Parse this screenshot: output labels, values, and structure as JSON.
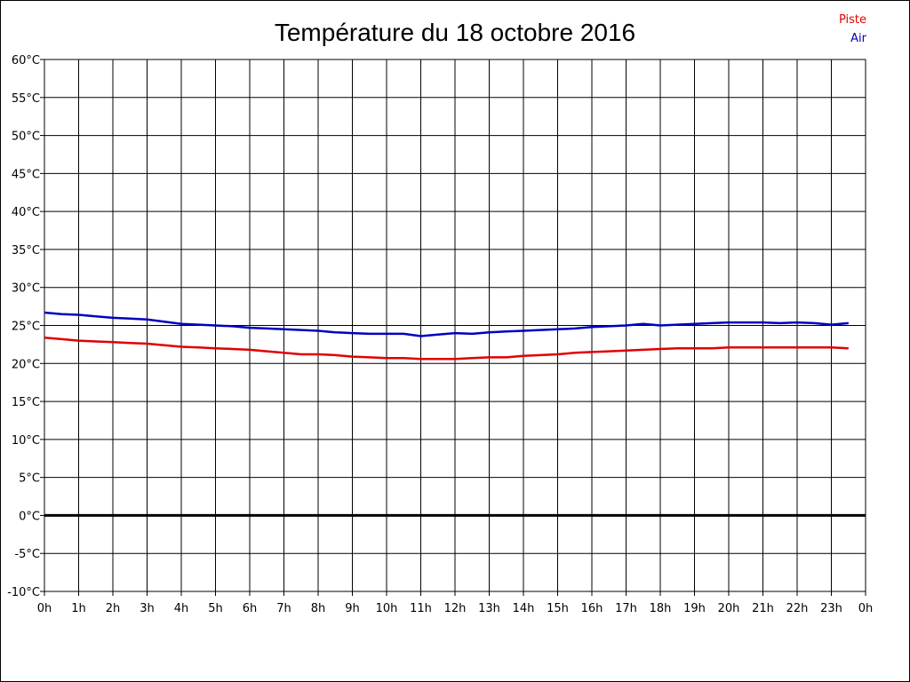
{
  "chart_data": {
    "type": "line",
    "title": "Température du 18 octobre 2016",
    "xlabel": "",
    "ylabel": "",
    "x_ticks": [
      "0h",
      "1h",
      "2h",
      "3h",
      "4h",
      "5h",
      "6h",
      "7h",
      "8h",
      "9h",
      "10h",
      "11h",
      "12h",
      "13h",
      "14h",
      "15h",
      "16h",
      "17h",
      "18h",
      "19h",
      "20h",
      "21h",
      "22h",
      "23h",
      "0h"
    ],
    "y_ticks": [
      "60°C",
      "55°C",
      "50°C",
      "45°C",
      "40°C",
      "35°C",
      "30°C",
      "25°C",
      "20°C",
      "15°C",
      "10°C",
      "5°C",
      "0°C",
      "-5°C",
      "-10°C"
    ],
    "xlim": [
      0,
      24
    ],
    "ylim": [
      -10,
      60
    ],
    "grid": true,
    "legend_position": "top-right",
    "series": [
      {
        "name": "Piste",
        "color": "#e00000",
        "x": [
          0,
          0.5,
          1,
          1.5,
          2,
          2.5,
          3,
          3.5,
          4,
          4.5,
          5,
          5.5,
          6,
          6.5,
          7,
          7.5,
          8,
          8.5,
          9,
          9.5,
          10,
          10.5,
          11,
          11.5,
          12,
          12.5,
          13,
          13.5,
          14,
          14.5,
          15,
          15.5,
          16,
          16.5,
          17,
          17.5,
          18,
          18.5,
          19,
          19.5,
          20,
          20.5,
          21,
          21.5,
          22,
          22.5,
          23,
          23.5
        ],
        "values": [
          23.4,
          23.2,
          23.0,
          22.9,
          22.8,
          22.7,
          22.6,
          22.4,
          22.2,
          22.1,
          22.0,
          21.9,
          21.8,
          21.6,
          21.4,
          21.2,
          21.2,
          21.1,
          20.9,
          20.8,
          20.7,
          20.7,
          20.6,
          20.6,
          20.6,
          20.7,
          20.8,
          20.8,
          21.0,
          21.1,
          21.2,
          21.4,
          21.5,
          21.6,
          21.7,
          21.8,
          21.9,
          22.0,
          22.0,
          22.0,
          22.1,
          22.1,
          22.1,
          22.1,
          22.1,
          22.1,
          22.1,
          22.0
        ]
      },
      {
        "name": "Air",
        "color": "#0000c0",
        "x": [
          0,
          0.5,
          1,
          1.5,
          2,
          2.5,
          3,
          3.5,
          4,
          4.5,
          5,
          5.5,
          6,
          6.5,
          7,
          7.5,
          8,
          8.5,
          9,
          9.5,
          10,
          10.5,
          11,
          11.5,
          12,
          12.5,
          13,
          13.5,
          14,
          14.5,
          15,
          15.5,
          16,
          16.5,
          17,
          17.5,
          18,
          18.5,
          19,
          19.5,
          20,
          20.5,
          21,
          21.5,
          22,
          22.5,
          23,
          23.5
        ],
        "values": [
          26.7,
          26.5,
          26.4,
          26.2,
          26.0,
          25.9,
          25.8,
          25.5,
          25.2,
          25.1,
          25.0,
          24.9,
          24.7,
          24.6,
          24.5,
          24.4,
          24.3,
          24.1,
          24.0,
          23.9,
          23.9,
          23.9,
          23.6,
          23.8,
          24.0,
          23.9,
          24.1,
          24.2,
          24.3,
          24.4,
          24.5,
          24.6,
          24.8,
          24.9,
          25.0,
          25.2,
          25.0,
          25.1,
          25.2,
          25.3,
          25.4,
          25.4,
          25.4,
          25.3,
          25.4,
          25.3,
          25.1,
          25.3
        ]
      }
    ],
    "zero_line_color": "#000000"
  }
}
